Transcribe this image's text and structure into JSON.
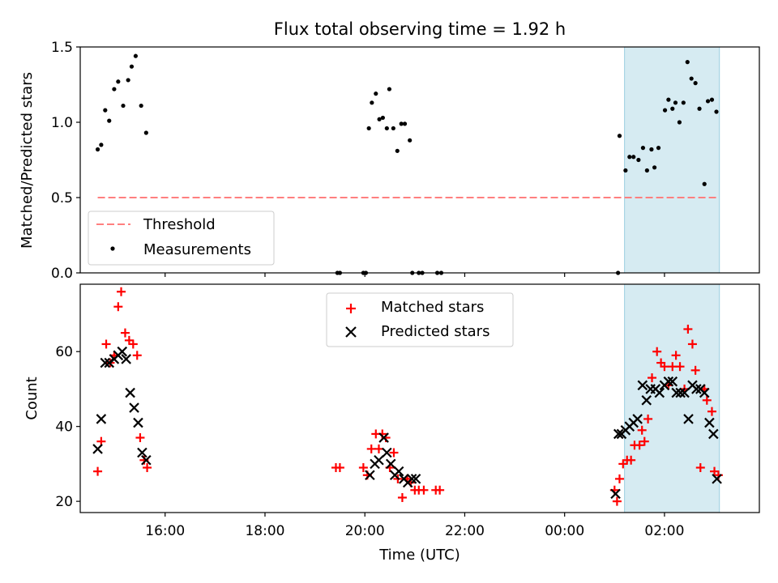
{
  "chart_data": [
    {
      "type": "scatter",
      "title": "Flux total observing time = 1.92 h",
      "xlabel": "",
      "ylabel": "Matched/Predicted stars",
      "xlim": [
        14.3,
        27.9
      ],
      "ylim": [
        0.0,
        1.5
      ],
      "yticks": [
        0.0,
        0.5,
        1.0,
        1.5
      ],
      "ytick_labels": [
        "0.0",
        "0.5",
        "1.0",
        "1.5"
      ],
      "highlight_span": [
        25.2,
        27.1
      ],
      "threshold": {
        "name": "Threshold",
        "value": 0.5,
        "x": [
          14.65,
          27.05
        ],
        "color": "#ff7f7f"
      },
      "legend": {
        "location": "lower-left",
        "entries": [
          "Threshold",
          "Measurements"
        ]
      },
      "series": [
        {
          "name": "Measurements",
          "color": "#000000",
          "x": [
            14.65,
            14.72,
            14.8,
            14.88,
            14.98,
            15.06,
            15.16,
            15.26,
            15.33,
            15.41,
            15.52,
            15.62,
            19.45,
            19.5,
            19.97,
            20.02,
            20.08,
            20.14,
            20.22,
            20.29,
            20.36,
            20.44,
            20.49,
            20.57,
            20.65,
            20.73,
            20.8,
            20.9,
            20.95,
            21.08,
            21.15,
            21.45,
            21.53,
            25.07,
            25.1,
            25.22,
            25.3,
            25.38,
            25.48,
            25.57,
            25.65,
            25.74,
            25.8,
            25.88,
            26.01,
            26.08,
            26.16,
            26.22,
            26.3,
            26.38,
            26.46,
            26.54,
            26.62,
            26.7,
            26.8,
            26.87,
            26.95,
            27.04
          ],
          "y": [
            0.82,
            0.85,
            1.08,
            1.01,
            1.22,
            1.27,
            1.11,
            1.28,
            1.37,
            1.44,
            1.11,
            0.93,
            0.0,
            0.0,
            0.0,
            0.0,
            0.96,
            1.13,
            1.19,
            1.02,
            1.03,
            0.96,
            1.22,
            0.96,
            0.81,
            0.99,
            0.99,
            0.88,
            0.0,
            0.0,
            0.0,
            0.0,
            0.0,
            0.0,
            0.91,
            0.68,
            0.77,
            0.77,
            0.75,
            0.83,
            0.68,
            0.82,
            0.7,
            0.83,
            1.08,
            1.15,
            1.09,
            1.13,
            1.0,
            1.13,
            1.4,
            1.29,
            1.26,
            1.09,
            0.59,
            1.14,
            1.15,
            1.07
          ]
        }
      ]
    },
    {
      "type": "scatter",
      "title": "",
      "xlabel": "Time (UTC)",
      "ylabel": "Count",
      "xlim": [
        14.3,
        27.9
      ],
      "ylim": [
        17.0,
        78.0
      ],
      "yticks": [
        20,
        40,
        60
      ],
      "ytick_labels": [
        "20",
        "40",
        "60"
      ],
      "xticks": [
        16,
        18,
        20,
        22,
        24,
        26
      ],
      "xtick_labels": [
        "16:00",
        "18:00",
        "20:00",
        "22:00",
        "00:00",
        "02:00"
      ],
      "highlight_span": [
        25.2,
        27.1
      ],
      "legend": {
        "location": "upper-center",
        "entries": [
          "Matched stars",
          "Predicted stars"
        ]
      },
      "series": [
        {
          "name": "Matched stars",
          "marker": "plus",
          "color": "#ff0000",
          "x": [
            14.65,
            14.72,
            14.82,
            14.9,
            14.98,
            15.06,
            15.12,
            15.2,
            15.28,
            15.36,
            15.44,
            15.5,
            15.58,
            15.64,
            19.42,
            19.5,
            19.97,
            20.05,
            20.13,
            20.22,
            20.28,
            20.35,
            20.42,
            20.5,
            20.58,
            20.66,
            20.75,
            20.85,
            20.92,
            21.0,
            21.08,
            21.18,
            21.42,
            21.5,
            25.0,
            25.05,
            25.1,
            25.17,
            25.25,
            25.33,
            25.4,
            25.5,
            25.55,
            25.6,
            25.67,
            25.75,
            25.85,
            25.93,
            26.0,
            26.08,
            26.16,
            26.23,
            26.31,
            26.4,
            26.47,
            26.56,
            26.62,
            26.72,
            26.8,
            26.85,
            26.95,
            27.0,
            27.08
          ],
          "y": [
            28,
            36,
            62,
            57,
            59,
            72,
            76,
            65,
            63,
            62,
            59,
            37,
            31,
            29,
            29,
            29,
            29,
            27,
            34,
            38,
            34,
            38,
            37,
            29,
            33,
            26,
            21,
            26,
            25,
            23,
            23,
            23,
            23,
            23,
            23,
            20,
            26,
            30,
            31,
            31,
            35,
            35,
            39,
            36,
            42,
            53,
            60,
            57,
            56,
            51,
            56,
            59,
            56,
            50,
            66,
            62,
            55,
            29,
            50,
            47,
            44,
            28,
            27
          ]
        },
        {
          "name": "Predicted stars",
          "marker": "x",
          "color": "#000000",
          "x": [
            14.65,
            14.72,
            14.8,
            14.88,
            14.98,
            15.06,
            15.14,
            15.22,
            15.3,
            15.38,
            15.46,
            15.54,
            15.62,
            20.1,
            20.2,
            20.28,
            20.38,
            20.44,
            20.52,
            20.6,
            20.68,
            20.78,
            20.86,
            20.94,
            21.02,
            25.02,
            25.08,
            25.14,
            25.22,
            25.3,
            25.38,
            25.46,
            25.56,
            25.64,
            25.72,
            25.82,
            25.9,
            26.0,
            26.08,
            26.16,
            26.24,
            26.32,
            26.4,
            26.48,
            26.56,
            26.64,
            26.72,
            26.8,
            26.9,
            26.98,
            27.05
          ],
          "y": [
            34,
            42,
            57,
            57,
            58,
            59,
            60,
            58,
            49,
            45,
            41,
            33,
            31,
            27,
            30,
            31,
            37,
            33,
            30,
            27,
            28,
            26,
            25,
            26,
            26,
            22,
            38,
            38,
            39,
            40,
            41,
            42,
            51,
            47,
            50,
            50,
            49,
            51,
            52,
            52,
            49,
            49,
            49,
            42,
            51,
            50,
            50,
            49,
            41,
            38,
            26
          ]
        }
      ]
    }
  ]
}
